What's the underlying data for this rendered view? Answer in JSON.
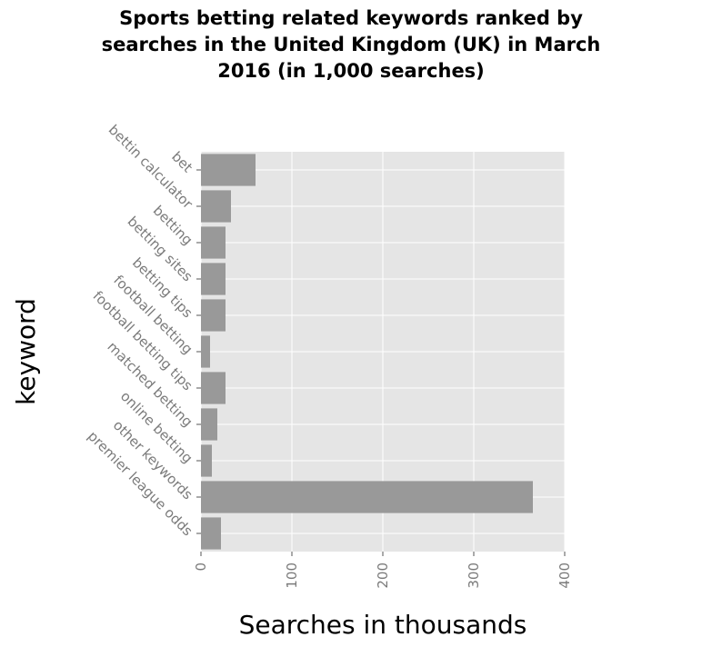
{
  "chart_data": {
    "type": "bar",
    "orientation": "horizontal",
    "title": [
      "Sports betting related keywords ranked by",
      "searches in the United Kingdom (UK) in March",
      "2016 (in 1,000 searches)"
    ],
    "xlabel": "Searches in thousands",
    "ylabel": "keyword",
    "categories": [
      "bet",
      "bettin calculator",
      "betting",
      "betting sites",
      "betting tips",
      "football betting",
      "football betting tips",
      "matched betting",
      "online betting",
      "other keywords",
      "premier league odds"
    ],
    "values": [
      60,
      33,
      27,
      27,
      27,
      10,
      27,
      18,
      12,
      365,
      22
    ],
    "xlim": [
      0,
      400
    ],
    "xticks": [
      0,
      100,
      200,
      300,
      400
    ],
    "grid": true,
    "colors": {
      "bar": "#999999",
      "panel": "#e5e5e5",
      "grid": "#ffffff"
    }
  }
}
